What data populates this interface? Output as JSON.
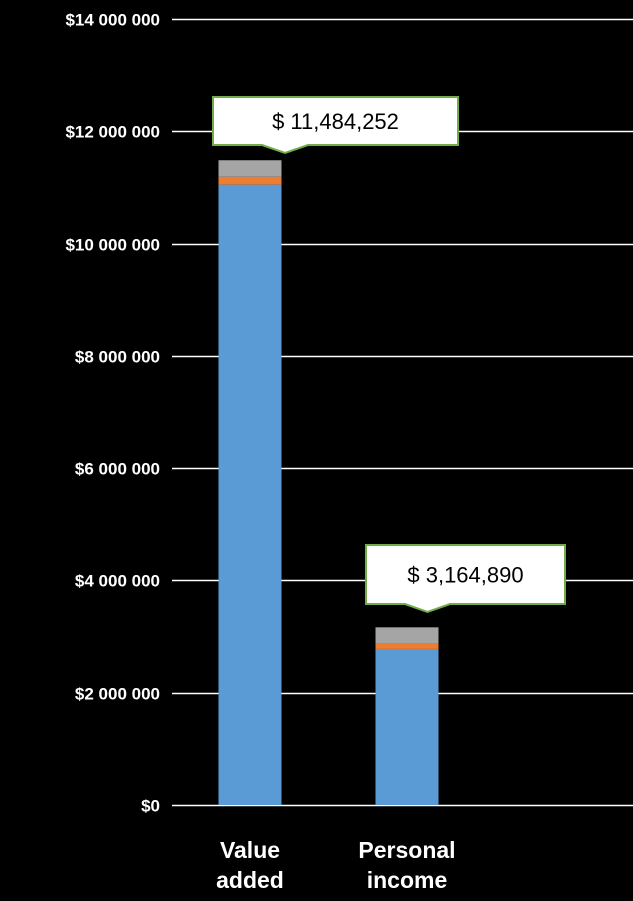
{
  "chart_data": {
    "type": "bar",
    "stacked": true,
    "categories": [
      [
        "Value",
        "added"
      ],
      [
        "Personal",
        "income"
      ]
    ],
    "series": [
      {
        "values": [
          11050000,
          2780000
        ],
        "color": "#5B9BD5"
      },
      {
        "values": [
          140000,
          95000
        ],
        "color": "#ED7D31"
      },
      {
        "values": [
          294252,
          289890
        ],
        "color": "#A5A5A5"
      }
    ],
    "totals": [
      11484252,
      3164890
    ],
    "data_labels": [
      "$ 11,484,252",
      "$ 3,164,890"
    ],
    "y_ticks": [
      0,
      2000000,
      4000000,
      6000000,
      8000000,
      10000000,
      12000000,
      14000000
    ],
    "y_tick_labels": [
      "$0",
      "$2 000 000",
      "$4 000 000",
      "$6 000 000",
      "$8 000 000",
      "$10 000 000",
      "$12 000 000",
      "$14 000 000"
    ],
    "ylim": [
      0,
      14000000
    ],
    "grid": true,
    "title": "",
    "xlabel": "",
    "ylabel": "",
    "colors": {
      "background": "#000000",
      "gridline": "#ffffff",
      "callout_fill": "#ffffff",
      "callout_border": "#70AD47"
    }
  }
}
